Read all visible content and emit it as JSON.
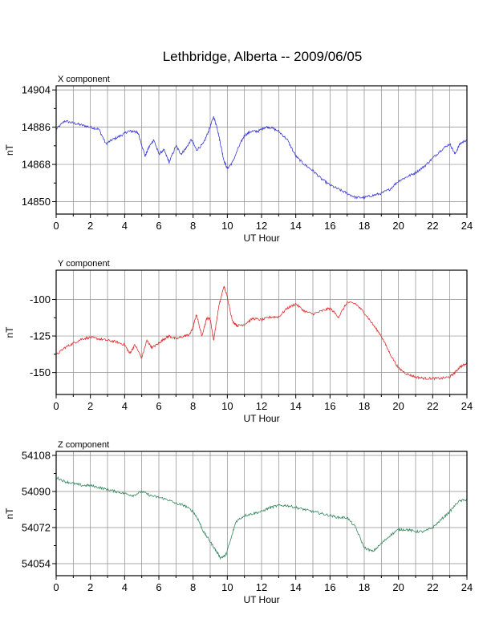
{
  "title": "Lethbridge, Alberta -- 2009/06/05",
  "chart_data": [
    {
      "type": "line",
      "panel_title": "X component",
      "xlabel": "UT Hour",
      "ylabel": "nT",
      "xlim": [
        0,
        24
      ],
      "ylim": [
        14844,
        14906
      ],
      "xticks": [
        0,
        2,
        4,
        6,
        8,
        10,
        12,
        14,
        16,
        18,
        20,
        22,
        24
      ],
      "yticks": [
        14850,
        14868,
        14886,
        14904
      ],
      "grid": true,
      "color": "#3b3bd6",
      "x": [
        0,
        0.5,
        1,
        1.5,
        2,
        2.5,
        2.9,
        3.3,
        3.8,
        4.2,
        4.6,
        4.8,
        5.2,
        5.4,
        5.7,
        6,
        6.3,
        6.6,
        7,
        7.3,
        7.6,
        7.9,
        8.2,
        8.6,
        8.9,
        9.2,
        9.4,
        9.6,
        9.8,
        10,
        10.3,
        10.7,
        11,
        11.4,
        11.8,
        12.2,
        12.5,
        13,
        13.5,
        14,
        14.5,
        15,
        15.5,
        16,
        16.5,
        17,
        17.5,
        18,
        18.5,
        19,
        19.5,
        20,
        20.5,
        21,
        21.5,
        22,
        22.5,
        23,
        23.3,
        23.6,
        24
      ],
      "y": [
        14885,
        14889,
        14888,
        14887,
        14886,
        14885,
        14878,
        14880,
        14882,
        14884,
        14884,
        14883,
        14872,
        14876,
        14880,
        14873,
        14875,
        14869,
        14877,
        14873,
        14876,
        14880,
        14875,
        14878,
        14884,
        14891,
        14886,
        14878,
        14870,
        14866,
        14869,
        14877,
        14882,
        14884,
        14884,
        14886,
        14886,
        14884,
        14880,
        14872,
        14868,
        14865,
        14861,
        14858,
        14856,
        14854,
        14852,
        14852,
        14853,
        14854,
        14856,
        14860,
        14862,
        14864,
        14867,
        14871,
        14875,
        14878,
        14873,
        14878,
        14880
      ]
    },
    {
      "type": "line",
      "panel_title": "Y component",
      "xlabel": "UT Hour",
      "ylabel": "nT",
      "xlim": [
        0,
        24
      ],
      "ylim": [
        -165,
        -80
      ],
      "xticks": [
        0,
        2,
        4,
        6,
        8,
        10,
        12,
        14,
        16,
        18,
        20,
        22,
        24
      ],
      "yticks": [
        -150,
        -125,
        -100
      ],
      "grid": true,
      "color": "#e03030",
      "x": [
        0,
        0.5,
        1,
        1.5,
        2,
        2.5,
        3,
        3.5,
        4,
        4.3,
        4.6,
        5,
        5.3,
        5.6,
        6,
        6.3,
        6.6,
        7,
        7.5,
        7.8,
        8,
        8.2,
        8.5,
        8.8,
        9,
        9.2,
        9.5,
        9.8,
        10,
        10.3,
        10.6,
        11,
        11.5,
        12,
        12.5,
        13,
        13.5,
        14,
        14.5,
        15,
        15.5,
        16,
        16.5,
        17,
        17.5,
        18,
        18.5,
        19,
        19.5,
        20,
        20.5,
        21,
        21.5,
        22,
        22.5,
        23,
        23.3,
        23.6,
        24
      ],
      "y": [
        -138,
        -133,
        -130,
        -127,
        -126,
        -127,
        -128,
        -129,
        -131,
        -137,
        -131,
        -140,
        -128,
        -133,
        -130,
        -127,
        -125,
        -127,
        -125,
        -124,
        -119,
        -110,
        -125,
        -113,
        -113,
        -128,
        -105,
        -91,
        -98,
        -115,
        -118,
        -117,
        -113,
        -114,
        -112,
        -112,
        -106,
        -103,
        -108,
        -110,
        -108,
        -106,
        -112,
        -102,
        -103,
        -109,
        -117,
        -125,
        -137,
        -147,
        -151,
        -153,
        -154,
        -154,
        -154,
        -153,
        -150,
        -146,
        -144
      ]
    },
    {
      "type": "line",
      "panel_title": "Z component",
      "xlabel": "UT Hour",
      "ylabel": "nT",
      "xlim": [
        0,
        24
      ],
      "ylim": [
        54048,
        54110
      ],
      "xticks": [
        0,
        2,
        4,
        6,
        8,
        10,
        12,
        14,
        16,
        18,
        20,
        22,
        24
      ],
      "yticks": [
        54054,
        54072,
        54090,
        54108
      ],
      "grid": true,
      "color": "#3a8a60",
      "x": [
        0,
        0.5,
        1,
        1.5,
        2,
        2.5,
        3,
        3.5,
        4,
        4.5,
        5,
        5.5,
        6,
        6.5,
        7,
        7.5,
        8,
        8.3,
        8.6,
        9,
        9.3,
        9.6,
        9.9,
        10.2,
        10.5,
        11,
        11.5,
        12,
        12.5,
        13,
        13.5,
        14,
        14.5,
        15,
        15.5,
        16,
        16.5,
        17,
        17.5,
        18,
        18.5,
        19,
        19.5,
        20,
        20.5,
        21,
        21.5,
        22,
        22.5,
        23,
        23.5,
        24
      ],
      "y": [
        54097,
        54095,
        54094,
        54093,
        54093,
        54092,
        54091,
        54090,
        54089,
        54088,
        54090,
        54088,
        54087,
        54086,
        54084,
        54083,
        54080,
        54076,
        54070,
        54065,
        54061,
        54057,
        54058,
        54066,
        54075,
        54078,
        54079,
        54080,
        54082,
        54083,
        54083,
        54082,
        54081,
        54080,
        54079,
        54078,
        54077,
        54077,
        54072,
        54062,
        54060,
        54064,
        54068,
        54071,
        54071,
        54070,
        54070,
        54072,
        54076,
        54080,
        54085,
        54086
      ]
    }
  ]
}
